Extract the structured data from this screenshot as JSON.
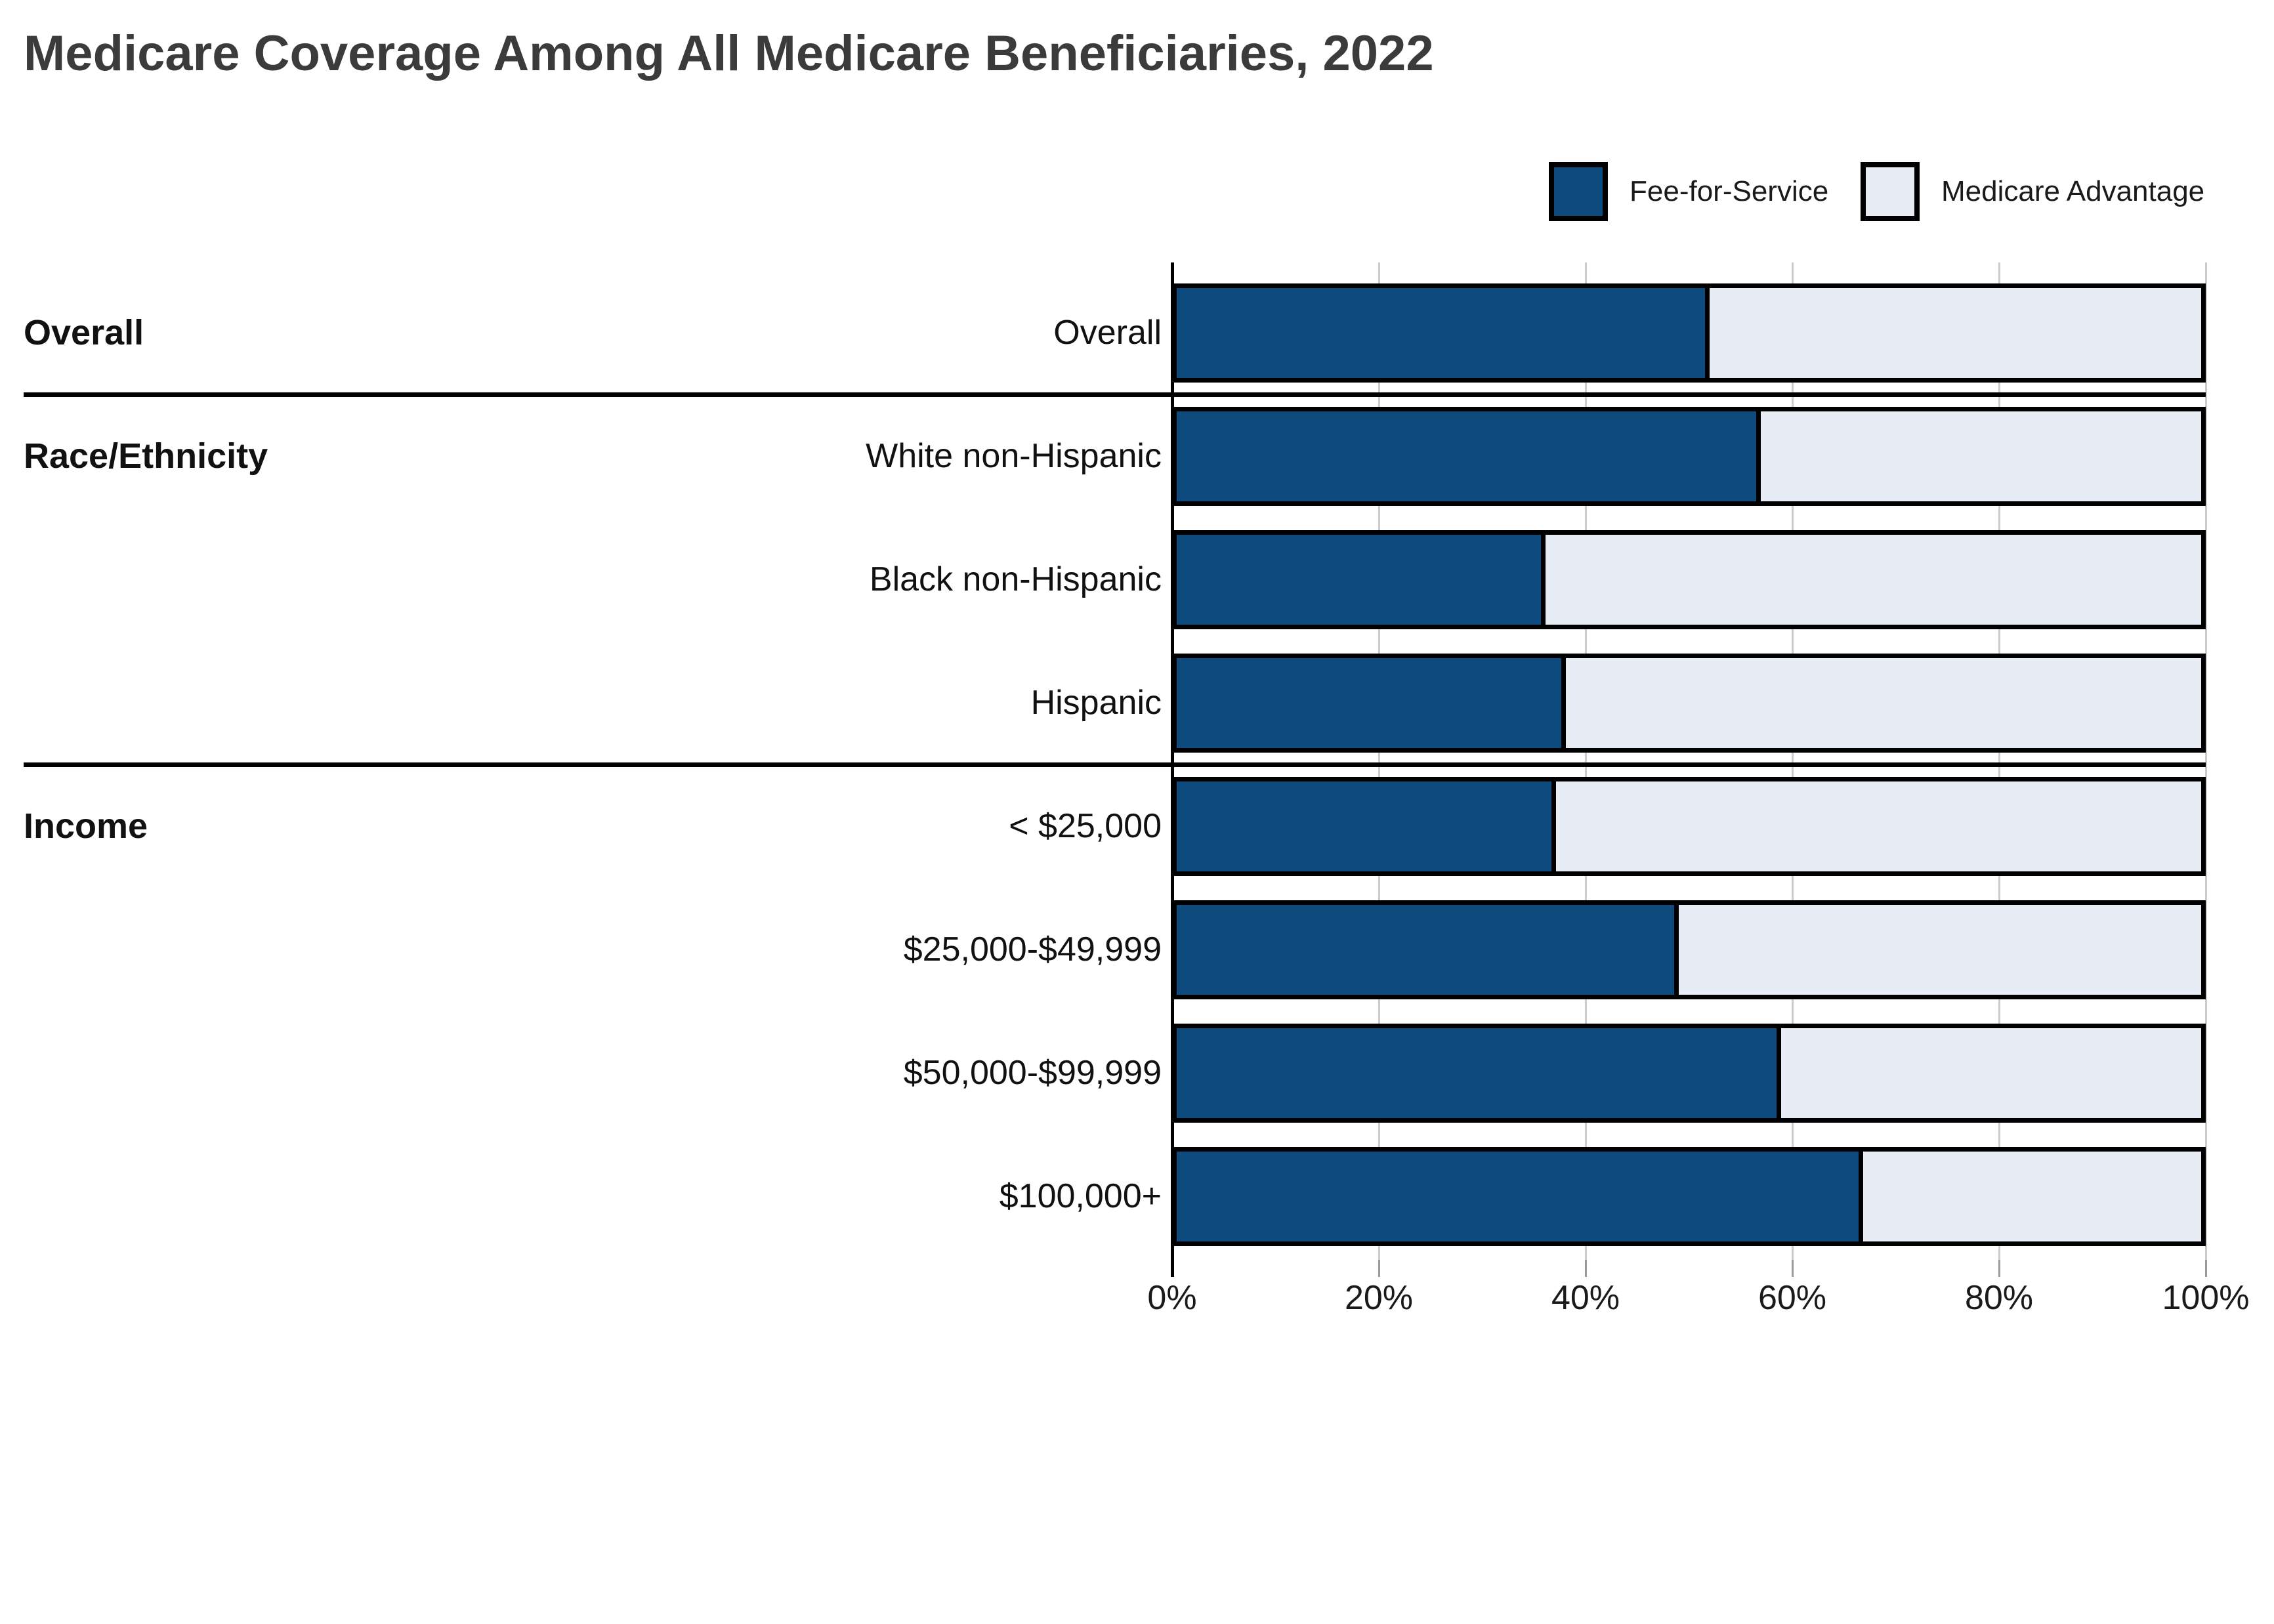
{
  "page": {
    "title": "Medicare Coverage Among All Medicare Beneficiaries, 2022"
  },
  "legend": {
    "items": [
      {
        "label": "Fee-for-Service",
        "color": "#0d4a7d"
      },
      {
        "label": "Medicare Advantage",
        "color": "#e8ecf4"
      }
    ]
  },
  "colors": {
    "fee_for_service": "#0d4a7d",
    "medicare_advantage": "#e8ecf4",
    "bar_border": "#000000",
    "gridline": "#cccccc",
    "title_text": "#3b3b3b",
    "label_text": "#111111"
  },
  "chart_data": {
    "type": "bar",
    "orientation": "horizontal",
    "stacked": true,
    "title": "Medicare Coverage Among All Medicare Beneficiaries, 2022",
    "series_names": [
      "Fee-for-Service",
      "Medicare Advantage"
    ],
    "unit": "percent",
    "xlim": [
      0,
      100
    ],
    "x_ticks": [
      "0%",
      "20%",
      "40%",
      "60%",
      "80%",
      "100%"
    ],
    "grid": true,
    "legend_position": "top-right",
    "sections": [
      {
        "label": "Overall",
        "first_row": 0
      },
      {
        "label": "Race/Ethnicity",
        "first_row": 1
      },
      {
        "label": "Income",
        "first_row": 4
      }
    ],
    "rows": [
      {
        "label": "Overall",
        "section": "Overall",
        "fee_for_service": 52,
        "medicare_advantage": 48
      },
      {
        "label": "White non-Hispanic",
        "section": "Race/Ethnicity",
        "fee_for_service": 57,
        "medicare_advantage": 43
      },
      {
        "label": "Black non-Hispanic",
        "section": "Race/Ethnicity",
        "fee_for_service": 36,
        "medicare_advantage": 64
      },
      {
        "label": "Hispanic",
        "section": "Race/Ethnicity",
        "fee_for_service": 38,
        "medicare_advantage": 62
      },
      {
        "label": "< $25,000",
        "section": "Income",
        "fee_for_service": 37,
        "medicare_advantage": 63
      },
      {
        "label": "$25,000-$49,999",
        "section": "Income",
        "fee_for_service": 49,
        "medicare_advantage": 51
      },
      {
        "label": "$50,000-$99,999",
        "section": "Income",
        "fee_for_service": 59,
        "medicare_advantage": 41
      },
      {
        "label": "$100,000+",
        "section": "Income",
        "fee_for_service": 67,
        "medicare_advantage": 33
      }
    ]
  }
}
